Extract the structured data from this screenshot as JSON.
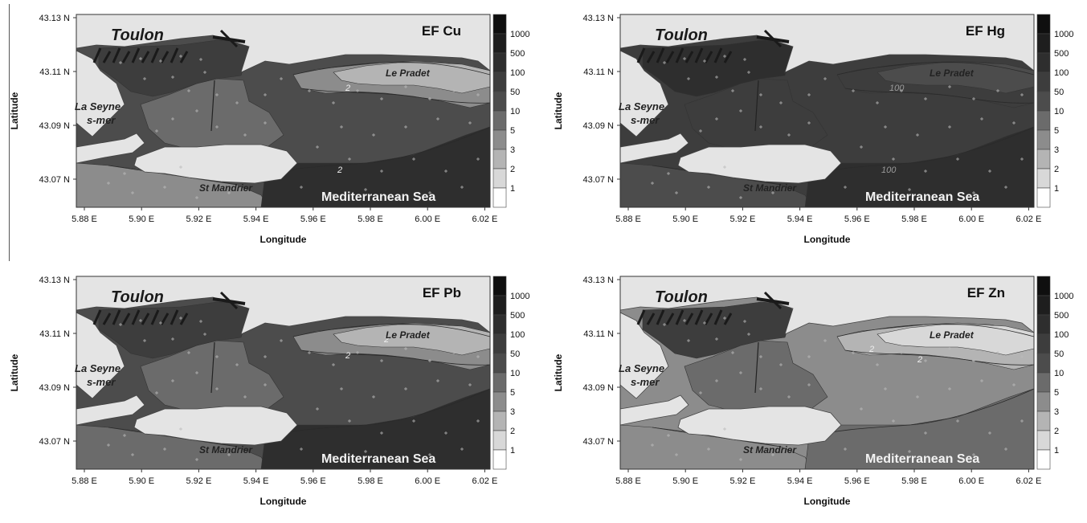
{
  "legend": {
    "labels": [
      "1000",
      "500",
      "100",
      "50",
      "10",
      "5",
      "3",
      "2",
      "1"
    ],
    "colors": [
      "#0f0f0f",
      "#1e1e1e",
      "#2e2e2e",
      "#3d3d3d",
      "#4c4c4c",
      "#6b6b6b",
      "#8c8c8c",
      "#b4b4b4",
      "#d8d8d8",
      "#ffffff"
    ]
  },
  "land_color": "#e4e4e4",
  "axis": {
    "y_label": "Latitude",
    "x_label": "Longitude",
    "y_ticks": [
      "43.13 N",
      "43.11 N",
      "43.09 N",
      "43.07 N"
    ],
    "x_ticks": [
      "5.88 E",
      "5.90 E",
      "5.92 E",
      "5.94 E",
      "5.96 E",
      "5.98 E",
      "6.00 E",
      "6.02 E"
    ]
  },
  "places": {
    "toulon": "Toulon",
    "le_pradet": "Le Pradet",
    "la_seyne_1": "La Seyne",
    "la_seyne_2": "s-mer",
    "st_mandrier": "St Mandrier",
    "sea": "Mediterranean Sea"
  },
  "panels": [
    {
      "title": "EF Cu",
      "zones": {
        "harbor": "#3d3d3d",
        "inner": "#6b6b6b",
        "outer": "#4c4c4c",
        "nearshore": "#8c8c8c",
        "coast": "#b4b4b4",
        "southwest": "#8c8c8c",
        "southeast": "#2e2e2e"
      },
      "contour_labels": [
        "2",
        "2"
      ]
    },
    {
      "title": "EF Hg",
      "zones": {
        "harbor": "#2e2e2e",
        "inner": "#3d3d3d",
        "outer": "#3d3d3d",
        "nearshore": "#3d3d3d",
        "coast": "#4c4c4c",
        "southwest": "#4c4c4c",
        "southeast": "#2e2e2e"
      },
      "contour_labels": [
        "100",
        "100"
      ]
    },
    {
      "title": "EF Pb",
      "zones": {
        "harbor": "#3d3d3d",
        "inner": "#6b6b6b",
        "outer": "#4c4c4c",
        "nearshore": "#8c8c8c",
        "coast": "#b4b4b4",
        "southwest": "#6b6b6b",
        "southeast": "#2e2e2e"
      },
      "contour_labels": [
        "2",
        "2"
      ]
    },
    {
      "title": "EF Zn",
      "zones": {
        "harbor": "#3d3d3d",
        "inner": "#6b6b6b",
        "outer": "#8c8c8c",
        "nearshore": "#b4b4b4",
        "coast": "#d8d8d8",
        "southwest": "#8c8c8c",
        "southeast": "#6b6b6b"
      },
      "contour_labels": [
        "2",
        "2"
      ]
    }
  ]
}
